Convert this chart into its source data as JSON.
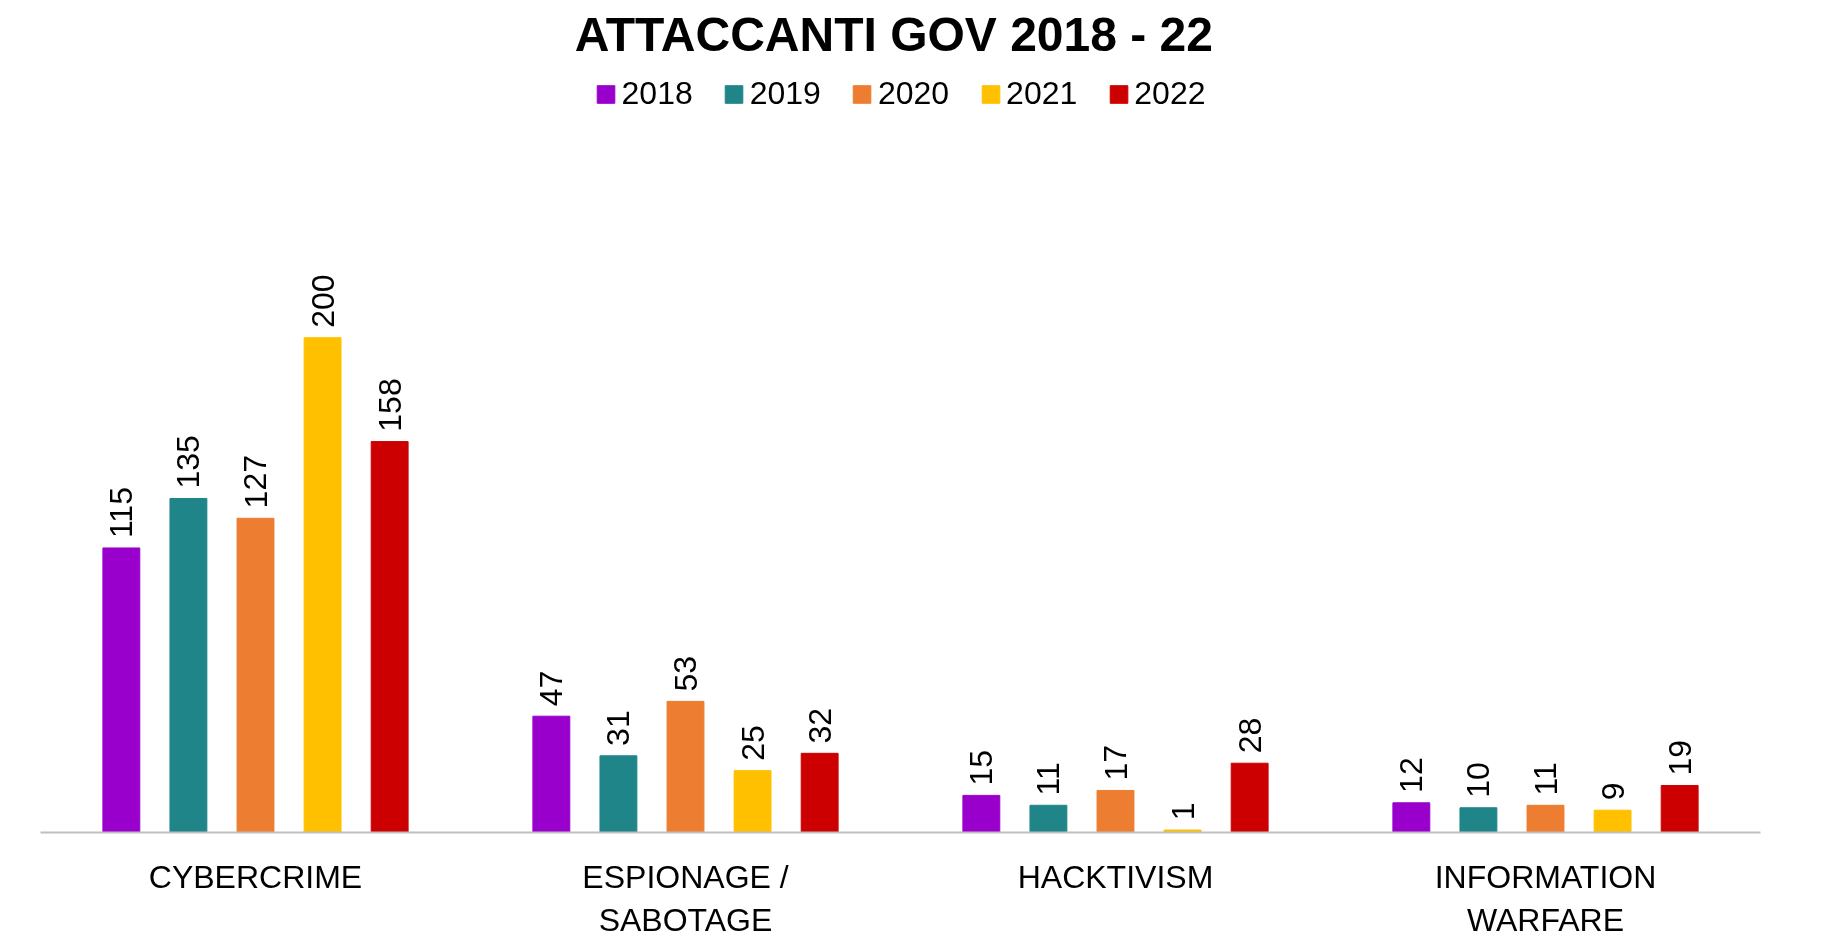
{
  "chart_data": {
    "type": "bar",
    "title": "ATTACCANTI  GOV 2018 - 22",
    "categories": [
      "CYBERCRIME",
      "ESPIONAGE / SABOTAGE",
      "HACKTIVISM",
      "INFORMATION WARFARE"
    ],
    "series": [
      {
        "name": "2018",
        "color": "#9900cc",
        "values": [
          115,
          47,
          15,
          12
        ]
      },
      {
        "name": "2019",
        "color": "#1f8589",
        "values": [
          135,
          31,
          11,
          10
        ]
      },
      {
        "name": "2020",
        "color": "#ed7d31",
        "values": [
          127,
          53,
          17,
          11
        ]
      },
      {
        "name": "2021",
        "color": "#ffc000",
        "values": [
          200,
          25,
          1,
          9
        ]
      },
      {
        "name": "2022",
        "color": "#cc0000",
        "values": [
          158,
          32,
          28,
          19
        ]
      }
    ],
    "data_labels": true,
    "legend": "top",
    "grid": false
  }
}
